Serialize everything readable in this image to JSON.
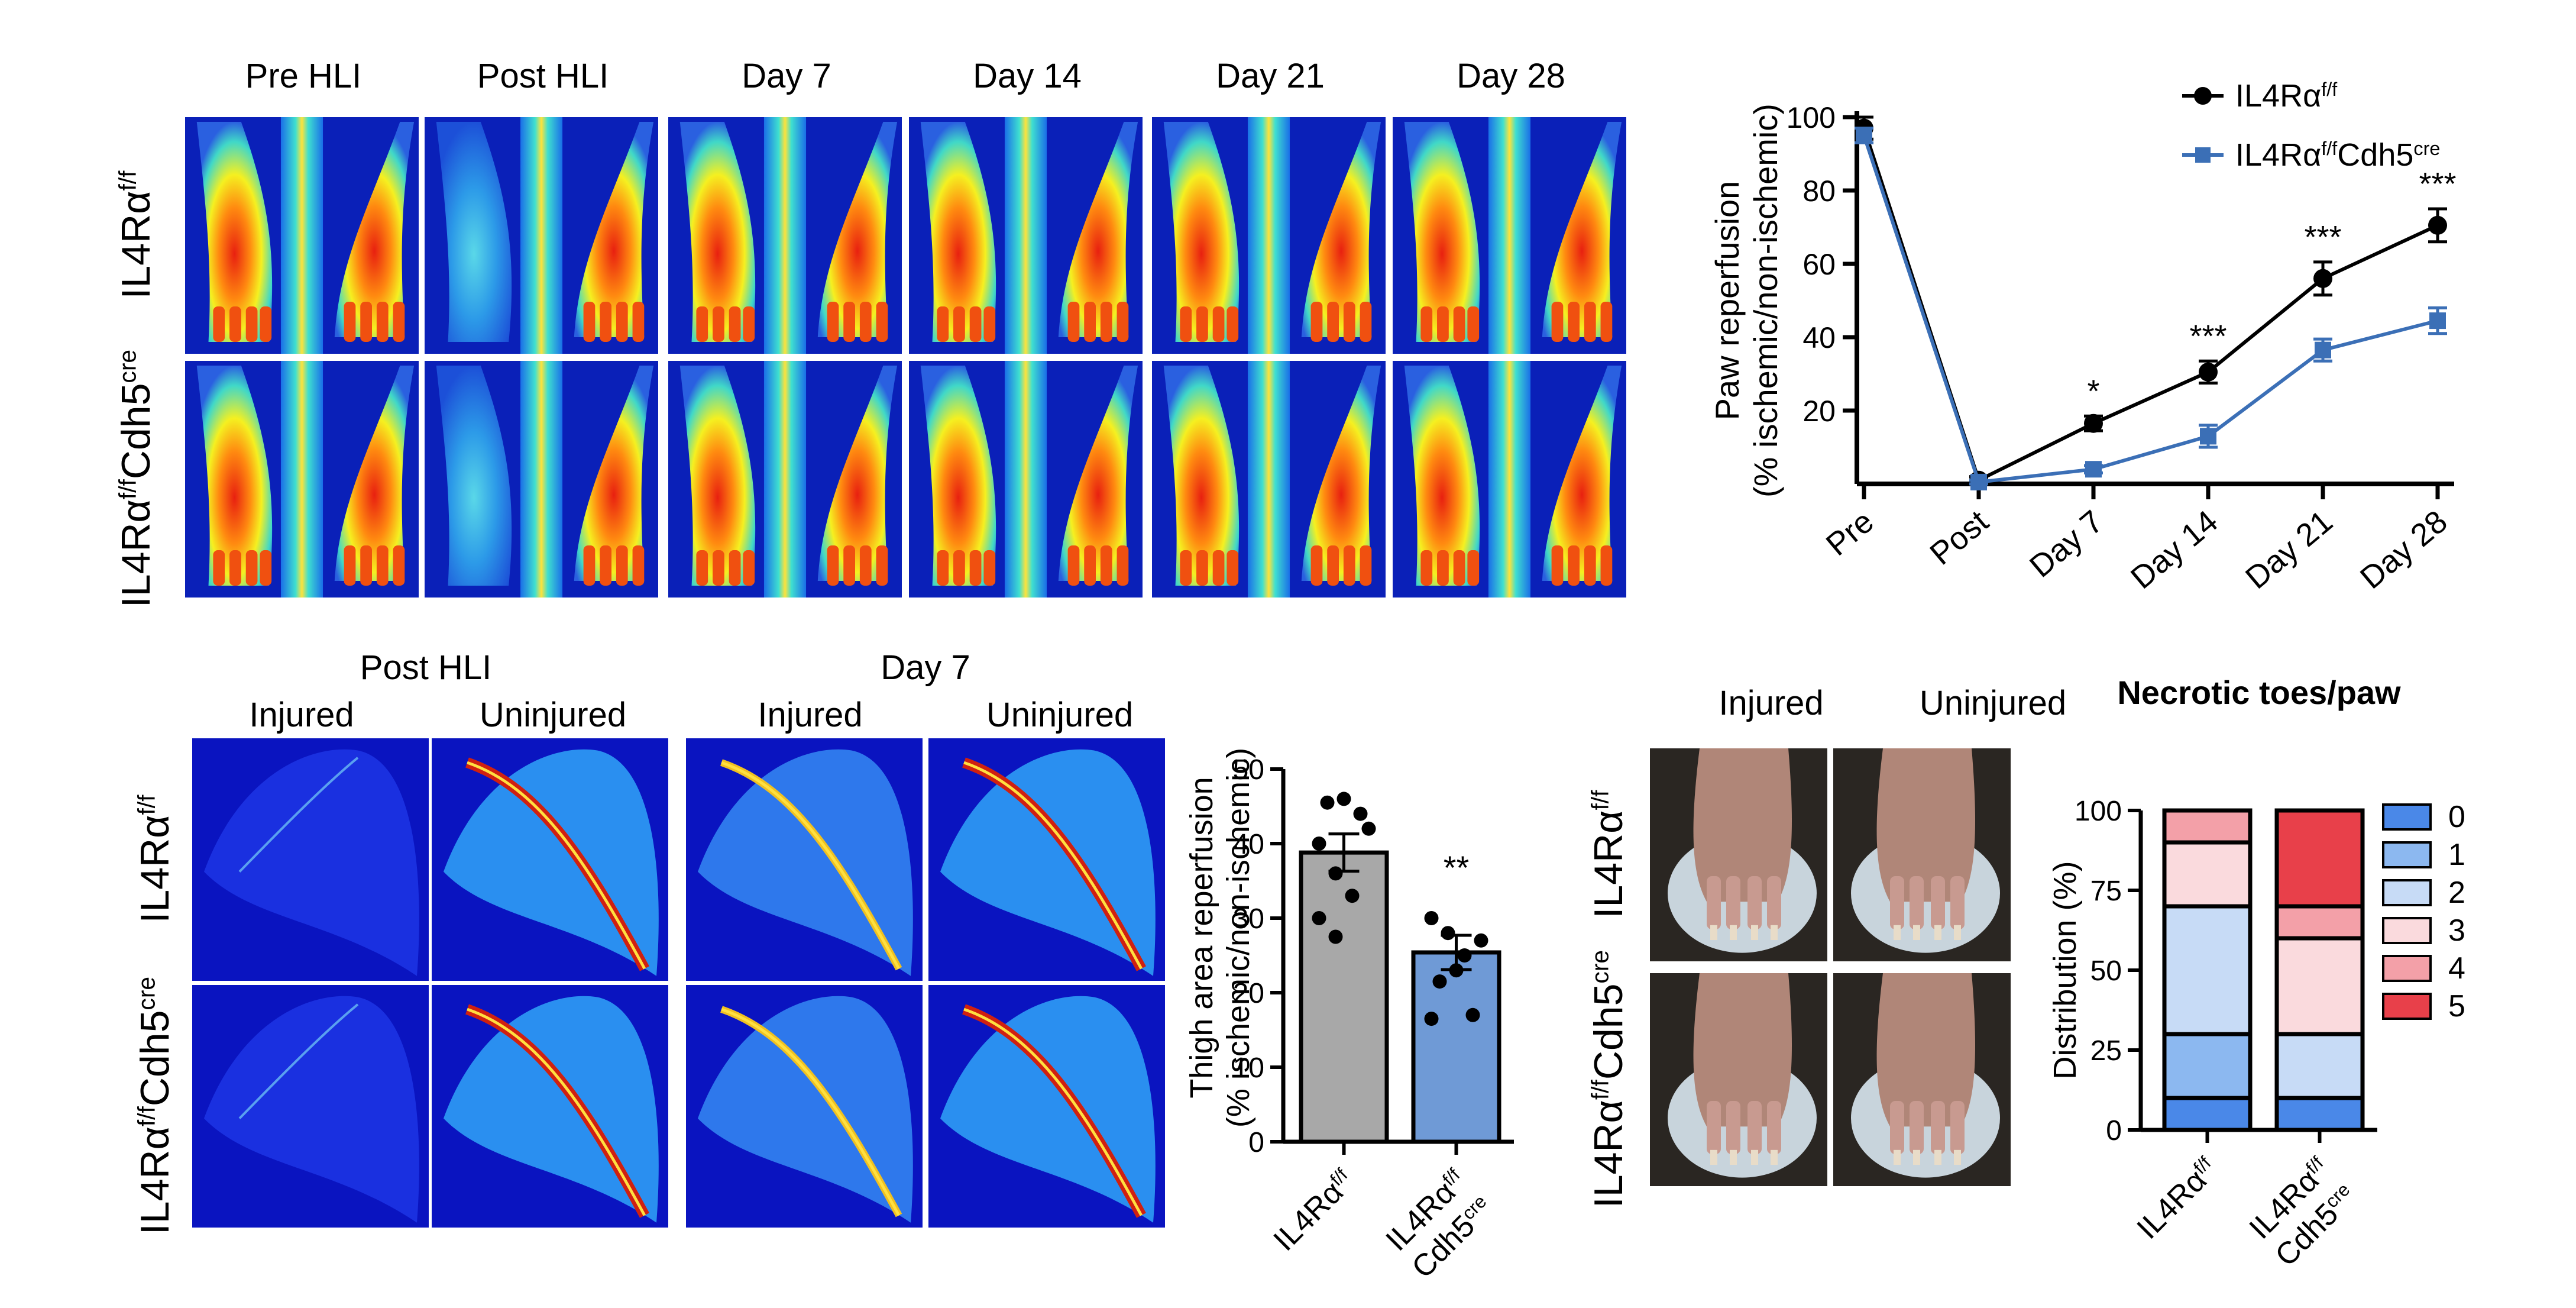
{
  "panelA": {
    "columns": [
      "Pre HLI",
      "Post HLI",
      "Day 7",
      "Day 14",
      "Day 21",
      "Day 28"
    ],
    "rows": [
      "IL4Rα",
      "IL4Rα"
    ],
    "row_sup": [
      "f/f",
      "f/f"
    ],
    "row_suffix": [
      "",
      "Cdh5"
    ],
    "row_suffix_sup": [
      "",
      "cre"
    ]
  },
  "panelB": {
    "groups": [
      "Post HLI",
      "Day 7"
    ],
    "subcols": [
      "Injured",
      "Uninjured",
      "Injured",
      "Uninjured"
    ],
    "rows": [
      "IL4Rα",
      "IL4Rα"
    ],
    "row_sup": [
      "f/f",
      "f/f"
    ],
    "row_suffix": [
      "",
      "Cdh5"
    ],
    "row_suffix_sup": [
      "",
      "cre"
    ]
  },
  "panelD": {
    "cols": [
      "Injured",
      "Uninjured"
    ],
    "rows": [
      "IL4Rα",
      "IL4Rα"
    ],
    "row_sup": [
      "f/f",
      "f/f"
    ],
    "row_suffix": [
      "",
      "Cdh5"
    ],
    "row_suffix_sup": [
      "",
      "cre"
    ]
  },
  "chart_data": [
    {
      "type": "line",
      "x": [
        "Pre",
        "Post",
        "Day 7",
        "Day 14",
        "Day 21",
        "Day 28"
      ],
      "ylabel_line1": "Paw reperfusion",
      "ylabel_line2": "(% ischemic/non-ischemic)",
      "ylim": [
        0,
        100
      ],
      "yticks": [
        20,
        40,
        60,
        80,
        100
      ],
      "series": [
        {
          "name": "IL4Rα",
          "name_sup": "f/f",
          "name_suffix": "",
          "name_suffix_sup": "",
          "color": "#000000",
          "marker": "circle",
          "values": [
            97,
            1,
            16.5,
            30.5,
            56,
            70.5
          ],
          "errors": [
            3,
            1,
            2,
            3,
            4.5,
            4.5
          ]
        },
        {
          "name": "IL4Rα",
          "name_sup": "f/f",
          "name_suffix": "Cdh5",
          "name_suffix_sup": "cre",
          "color": "#3b6fb6",
          "marker": "square",
          "values": [
            95,
            0.5,
            4,
            13,
            36.5,
            44.5
          ],
          "errors": [
            2,
            0.5,
            1,
            3,
            3,
            3.5
          ]
        }
      ],
      "annotations": [
        "",
        "",
        "*",
        "***",
        "***",
        "***"
      ]
    },
    {
      "type": "bar",
      "categories": [
        "IL4Rα",
        "IL4Rα"
      ],
      "category_sup": [
        "f/f",
        "f/f"
      ],
      "category_line2": [
        "",
        "Cdh5"
      ],
      "category_line2_sup": [
        "",
        "cre"
      ],
      "values": [
        38.8,
        25.4
      ],
      "errors": [
        2.5,
        2.3
      ],
      "colors": [
        "#a8a8a8",
        "#6f9ad6"
      ],
      "points": [
        [
          40,
          36,
          33,
          42,
          45.5,
          46,
          44,
          30,
          27.5
        ],
        [
          30,
          28,
          25,
          27,
          21.5,
          23,
          17,
          16.5
        ]
      ],
      "annotations": [
        "",
        "**"
      ],
      "ylabel_line1": "Thigh area reperfusion",
      "ylabel_line2": "(% ischemic/non-ischemic)",
      "ylim": [
        0,
        50
      ],
      "yticks": [
        0,
        10,
        20,
        30,
        40,
        50
      ]
    },
    {
      "type": "bar",
      "stacked": true,
      "title": "Necrotic toes/paw",
      "categories": [
        "IL4Rα",
        "IL4Rα"
      ],
      "category_sup": [
        "f/f",
        "f/f"
      ],
      "category_line2": [
        "",
        "Cdh5"
      ],
      "category_line2_sup": [
        "",
        "cre"
      ],
      "ylabel": "Distribution (%)",
      "ylim": [
        0,
        100
      ],
      "yticks": [
        0,
        25,
        50,
        75,
        100
      ],
      "series": [
        {
          "name": "0",
          "color": "#4a88e8",
          "values": [
            10,
            10
          ]
        },
        {
          "name": "1",
          "color": "#8cb8f0",
          "values": [
            20,
            0
          ]
        },
        {
          "name": "2",
          "color": "#c7dbf6",
          "values": [
            40,
            20
          ]
        },
        {
          "name": "3",
          "color": "#fadadd",
          "values": [
            20,
            30
          ]
        },
        {
          "name": "4",
          "color": "#f3a0a8",
          "values": [
            10,
            10
          ]
        },
        {
          "name": "5",
          "color": "#e8404a",
          "values": [
            0,
            30
          ]
        }
      ]
    }
  ]
}
